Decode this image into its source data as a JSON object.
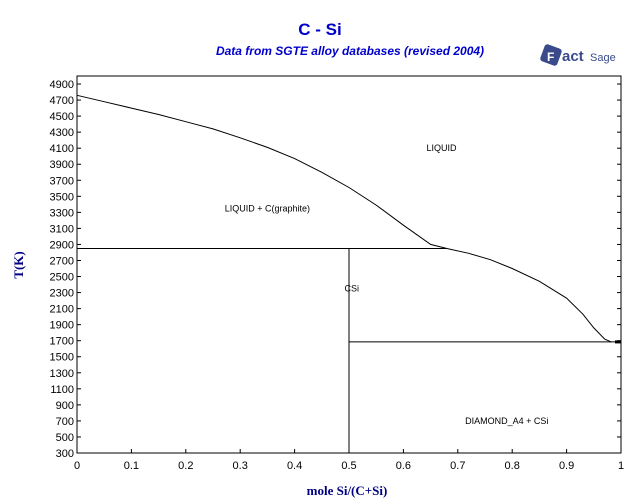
{
  "chart_data": {
    "type": "line",
    "title": "C - Si",
    "subtitle": "Data from SGTE alloy databases (revised 2004)",
    "xlabel": "mole Si/(C+Si)",
    "ylabel": "T(K)",
    "xlim": [
      0,
      1
    ],
    "ylim": [
      300,
      5000
    ],
    "x_ticks": [
      "0",
      "0.1",
      "0.2",
      "0.3",
      "0.4",
      "0.5",
      "0.6",
      "0.7",
      "0.8",
      "0.9",
      "1"
    ],
    "y_ticks": [
      "300",
      "500",
      "700",
      "900",
      "1100",
      "1300",
      "1500",
      "1700",
      "1900",
      "2100",
      "2300",
      "2500",
      "2700",
      "2900",
      "3100",
      "3300",
      "3500",
      "3700",
      "3900",
      "4100",
      "4300",
      "4500",
      "4700",
      "4900"
    ],
    "grid": false,
    "series": [
      {
        "points": [
          [
            0,
            4760
          ],
          [
            0.05,
            4680
          ],
          [
            0.1,
            4600
          ],
          [
            0.15,
            4520
          ],
          [
            0.2,
            4430
          ],
          [
            0.25,
            4340
          ],
          [
            0.3,
            4230
          ],
          [
            0.35,
            4110
          ],
          [
            0.4,
            3970
          ],
          [
            0.45,
            3800
          ],
          [
            0.5,
            3610
          ],
          [
            0.55,
            3390
          ],
          [
            0.6,
            3140
          ],
          [
            0.65,
            2900
          ],
          [
            0.68,
            2850
          ],
          [
            0.72,
            2790
          ],
          [
            0.76,
            2710
          ],
          [
            0.8,
            2600
          ],
          [
            0.85,
            2440
          ],
          [
            0.9,
            2230
          ],
          [
            0.93,
            2030
          ],
          [
            0.95,
            1860
          ],
          [
            0.97,
            1720
          ],
          [
            0.982,
            1685
          ]
        ]
      },
      {
        "points": [
          [
            0,
            2850
          ],
          [
            0.68,
            2850
          ]
        ]
      },
      {
        "points": [
          [
            0.5,
            300
          ],
          [
            0.5,
            2850
          ]
        ]
      },
      {
        "points": [
          [
            0.5,
            1685
          ],
          [
            1,
            1685
          ]
        ]
      }
    ],
    "annotations": [
      {
        "text": "LIQUID",
        "x": 0.67,
        "y": 4100
      },
      {
        "text": "LIQUID + C(graphite)",
        "x": 0.35,
        "y": 3350
      },
      {
        "text": "CSi",
        "x": 0.505,
        "y": 2350
      },
      {
        "text": "DIAMOND_A4 + CSi",
        "x": 0.79,
        "y": 700
      }
    ]
  },
  "logo": {
    "brand_text": "FactSage"
  }
}
